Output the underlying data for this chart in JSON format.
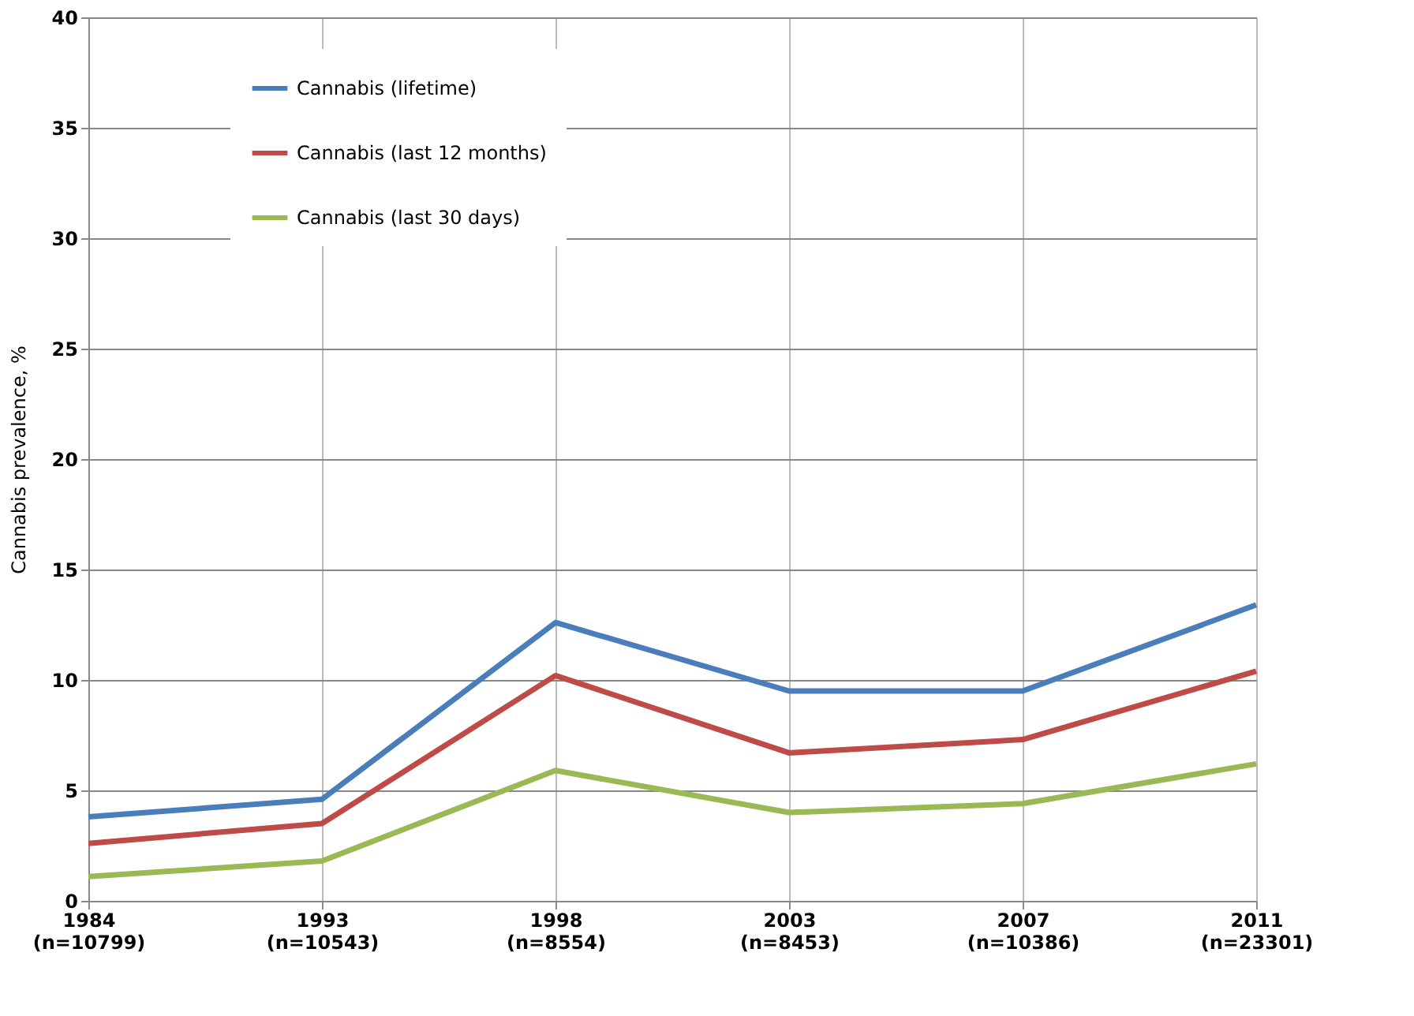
{
  "chart_data": {
    "type": "line",
    "ylabel": "Cannabis prevalence, %",
    "categories": [
      "1984\n(n=10799)",
      "1993\n(n=10543)",
      "1998\n(n=8554)",
      "2003\n(n=8453)",
      "2007\n(n=10386)",
      "2011\n(n=23301)"
    ],
    "series": [
      {
        "name": "Cannabis (lifetime)",
        "color": "#4a7ebb",
        "values": [
          3.8,
          4.6,
          12.6,
          9.5,
          9.5,
          13.4
        ]
      },
      {
        "name": "Cannabis (last 12 months)",
        "color": "#be4b48",
        "values": [
          2.6,
          3.5,
          10.2,
          6.7,
          7.3,
          10.4
        ]
      },
      {
        "name": "Cannabis (last 30 days)",
        "color": "#98b954",
        "values": [
          1.1,
          1.8,
          5.9,
          4.0,
          4.4,
          6.2
        ]
      }
    ],
    "ylim": [
      0,
      40
    ],
    "yticks": [
      0,
      5,
      10,
      15,
      20,
      25,
      30,
      35,
      40
    ],
    "grid": true,
    "legend": "top left",
    "marker": "none",
    "line_style": "solid"
  }
}
